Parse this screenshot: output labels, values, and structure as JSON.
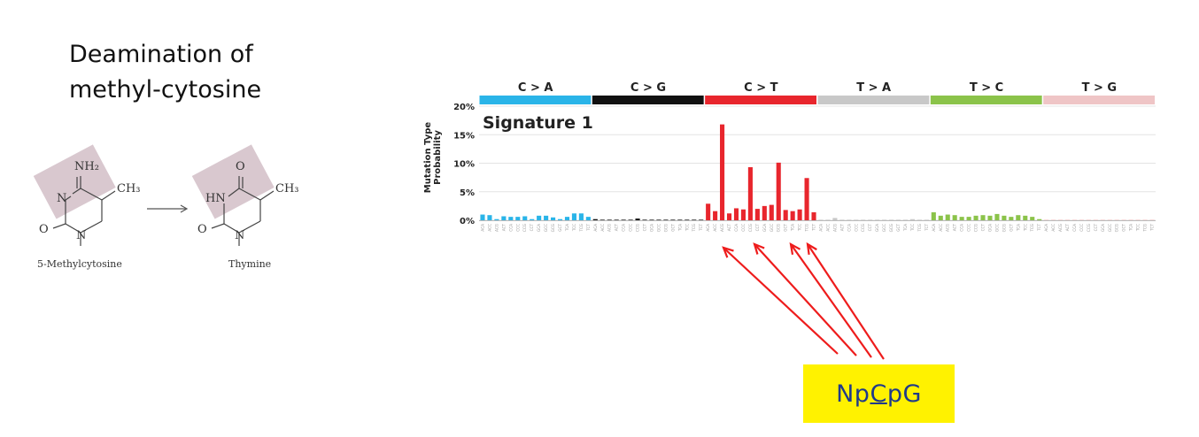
{
  "slide": {
    "title_line1": "Deamination of",
    "title_line2": "methyl-cytosine"
  },
  "chemistry": {
    "reactant": {
      "name": "5-Methylcytosine",
      "labels": [
        "NH₂",
        "CH₃",
        "N",
        "O",
        "N"
      ]
    },
    "product": {
      "name": "Thymine",
      "labels": [
        "O",
        "CH₃",
        "HN",
        "O",
        "N"
      ]
    },
    "highlight_color": "#d9c8cf"
  },
  "chart_data": {
    "type": "bar",
    "title": "Signature 1",
    "ylabel_line1": "Mutation Type",
    "ylabel_line2": "Probability",
    "ylim": [
      0,
      20
    ],
    "yticks": [
      "0%",
      "5%",
      "10%",
      "15%",
      "20%"
    ],
    "grid": true,
    "mutation_classes": [
      {
        "name": "C > A",
        "color": "#2ab4e8"
      },
      {
        "name": "C > G",
        "color": "#111111"
      },
      {
        "name": "C > T",
        "color": "#e8262d"
      },
      {
        "name": "T > A",
        "color": "#c8c8c8"
      },
      {
        "name": "T > C",
        "color": "#8bc34a"
      },
      {
        "name": "T > G",
        "color": "#efc5c6"
      }
    ],
    "values": [
      1.0,
      0.9,
      0.2,
      0.7,
      0.6,
      0.6,
      0.7,
      0.2,
      0.8,
      0.8,
      0.5,
      0.2,
      0.6,
      1.2,
      1.2,
      0.6,
      0.2,
      0.1,
      0.1,
      0.1,
      0.1,
      0.1,
      0.3,
      0.1,
      0.1,
      0.1,
      0.1,
      0.1,
      0.1,
      0.1,
      0.1,
      0.1,
      2.9,
      1.6,
      16.8,
      1.2,
      2.1,
      1.9,
      9.3,
      2.0,
      2.5,
      2.7,
      10.1,
      1.8,
      1.6,
      1.9,
      7.4,
      1.4,
      0.1,
      0.1,
      0.4,
      0.1,
      0.1,
      0.1,
      0.1,
      0.1,
      0.1,
      0.1,
      0.1,
      0.1,
      0.1,
      0.2,
      0.1,
      0.1,
      1.4,
      0.8,
      1.0,
      0.9,
      0.6,
      0.6,
      0.8,
      0.9,
      0.8,
      1.1,
      0.8,
      0.6,
      0.9,
      0.8,
      0.6,
      0.2,
      0.1,
      0.1,
      0.1,
      0.1,
      0.1,
      0.1,
      0.1,
      0.1,
      0.1,
      0.1,
      0.1,
      0.1,
      0.1,
      0.1,
      0.1,
      0.1
    ],
    "contexts": [
      "ACA",
      "ACC",
      "ACG",
      "ACT",
      "CCA",
      "CCC",
      "CCG",
      "CCT",
      "GCA",
      "GCC",
      "GCG",
      "GCT",
      "TCA",
      "TCC",
      "TCG",
      "TCT"
    ]
  },
  "annotation": {
    "callout_prefix": "Np",
    "callout_underlined": "C",
    "callout_suffix": "pG",
    "arrow_color": "#ee1c1c",
    "callout_bg": "#fff200"
  }
}
